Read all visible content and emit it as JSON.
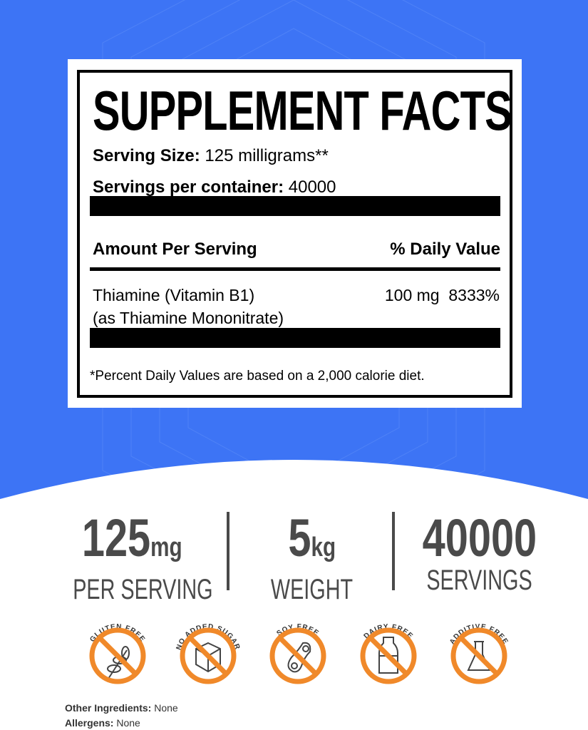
{
  "colors": {
    "background_blue": "#3d74f5",
    "icon_orange": "#f0892a",
    "stat_gray": "#4a4a4a"
  },
  "facts": {
    "title": "SUPPLEMENT FACTS",
    "serving_size_label": "Serving Size:",
    "serving_size_value": "125 milligrams**",
    "servings_label": "Servings per container:",
    "servings_value": "40000",
    "amount_header": "Amount Per Serving",
    "dv_header": "% Daily Value",
    "ingredient_name": "Thiamine (Vitamin B1)",
    "ingredient_form": "(as Thiamine Mononitrate)",
    "ingredient_amount": "100 mg",
    "ingredient_dv": "8333%",
    "footnote": "*Percent Daily Values are based on a 2,000 calorie diet."
  },
  "stats": [
    {
      "value": "125",
      "unit": "mg",
      "label": "PER SERVING"
    },
    {
      "value": "5",
      "unit": "kg",
      "label": "WEIGHT"
    },
    {
      "value": "40000",
      "unit": "",
      "label": "SERVINGS"
    }
  ],
  "badges": [
    {
      "label": "GLUTEN FREE",
      "icon": "wheat-icon"
    },
    {
      "label": "NO ADDED SUGAR",
      "icon": "sugar-cube-icon"
    },
    {
      "label": "SOY FREE",
      "icon": "soybean-icon"
    },
    {
      "label": "DAIRY FREE",
      "icon": "milk-bottle-icon"
    },
    {
      "label": "ADDITIVE FREE",
      "icon": "flask-icon"
    }
  ],
  "info": {
    "other_label": "Other Ingredients:",
    "other_value": "None",
    "allergens_label": "Allergens:",
    "allergens_value": "None"
  }
}
